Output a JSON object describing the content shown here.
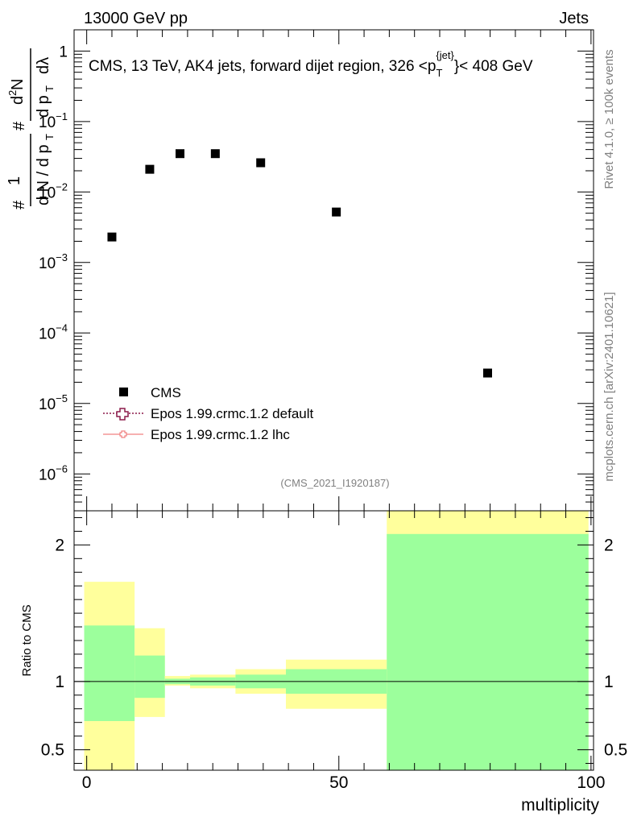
{
  "header": {
    "beam": "13000 GeV pp",
    "category": "Jets"
  },
  "side_labels": {
    "rivet": "Rivet 4.1.0, ≥ 100k events",
    "mcplots": "mcplots.cern.ch [arXiv:2401.10621]"
  },
  "chart_data": [
    {
      "type": "scatter",
      "panel": "main",
      "title_parts": {
        "prefix": "CMS, 13 TeV, AK4 jets, forward dijet region, 326 <p",
        "sub": "T",
        "sup": "{jet}",
        "suffix": "}< 408 GeV"
      },
      "ylabel": "#frac{1}{dN / d p_T} #frac{d^2N}{d p_T dλ}",
      "yscale": "log",
      "ylim": [
        3e-07,
        2.0
      ],
      "xlim": [
        -2.5,
        100.5
      ],
      "y_ticks": [
        {
          "value": 1e-06,
          "base": "10",
          "exp": "−6"
        },
        {
          "value": 1e-05,
          "base": "10",
          "exp": "−5"
        },
        {
          "value": 0.0001,
          "base": "10",
          "exp": "−4"
        },
        {
          "value": 0.001,
          "base": "10",
          "exp": "−3"
        },
        {
          "value": 0.01,
          "base": "10",
          "exp": "−2"
        },
        {
          "value": 0.1,
          "base": "10",
          "exp": "−1"
        },
        {
          "value": 1,
          "base": "1",
          "exp": ""
        }
      ],
      "series": [
        {
          "name": "CMS",
          "x": [
            5,
            12.5,
            18.5,
            25.5,
            34.5,
            49.5,
            79.5
          ],
          "y": [
            0.0023,
            0.021,
            0.035,
            0.035,
            0.026,
            0.0052,
            2.7e-05
          ]
        }
      ],
      "legend": {
        "position": "bottom-left",
        "entries": [
          {
            "label": "CMS",
            "marker": "filled-square",
            "color": "#000000"
          },
          {
            "label": "Epos 1.99.crmc.1.2 default",
            "marker": "open-cross",
            "color": "#8b1a4a"
          },
          {
            "label": "Epos 1.99.crmc.1.2 lhc",
            "marker": "open-cross",
            "color": "#f08080"
          }
        ]
      },
      "annotation": "(CMS_2021_I1920187)"
    },
    {
      "type": "bar",
      "panel": "ratio",
      "ylabel": "Ratio to CMS",
      "xlabel": "multiplicity",
      "ylim": [
        0.35,
        2.25
      ],
      "xlim": [
        -2.5,
        100.5
      ],
      "reference_line": 1,
      "x_ticks": [
        {
          "value": 0,
          "label": "0"
        },
        {
          "value": 50,
          "label": "50"
        },
        {
          "value": 100,
          "label": "100"
        }
      ],
      "y_ticks": [
        {
          "value": 0.5,
          "label": "0.5"
        },
        {
          "value": 1,
          "label": "1"
        },
        {
          "value": 2,
          "label": "2"
        }
      ],
      "bins": [
        {
          "lo": -0.5,
          "hi": 9.5,
          "stat": [
            0.71,
            1.41
          ],
          "total": [
            0.3,
            1.73
          ]
        },
        {
          "lo": 9.5,
          "hi": 15.5,
          "stat": [
            0.88,
            1.19
          ],
          "total": [
            0.74,
            1.39
          ]
        },
        {
          "lo": 15.5,
          "hi": 20.5,
          "stat": [
            0.98,
            1.02
          ],
          "total": [
            0.97,
            1.04
          ]
        },
        {
          "lo": 20.5,
          "hi": 29.5,
          "stat": [
            0.97,
            1.03
          ],
          "total": [
            0.95,
            1.05
          ]
        },
        {
          "lo": 29.5,
          "hi": 39.5,
          "stat": [
            0.95,
            1.05
          ],
          "total": [
            0.91,
            1.09
          ]
        },
        {
          "lo": 39.5,
          "hi": 59.5,
          "stat": [
            0.91,
            1.09
          ],
          "total": [
            0.8,
            1.16
          ]
        },
        {
          "lo": 59.5,
          "hi": 99.5,
          "stat": [
            0.1,
            2.08
          ],
          "total": [
            0.1,
            2.3
          ]
        }
      ],
      "colors": {
        "stat": "#9cff9c",
        "total": "#ffff9c"
      }
    }
  ]
}
